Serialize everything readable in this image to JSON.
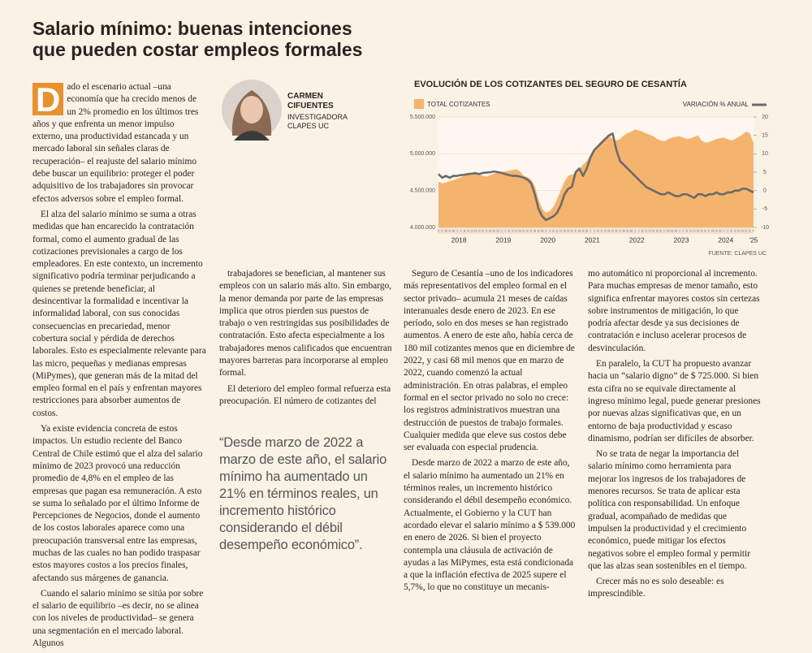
{
  "header": {
    "title": "Salario mínimo: buenas intenciones que pueden costar empleos formales"
  },
  "author": {
    "name": "CARMEN CIFUENTES",
    "role": "INVESTIGADORA CLAPES UC"
  },
  "columns": [
    [
      "Dado el escenario actual –una economía que ha crecido menos de un 2% promedio en los últimos tres años y que enfrenta un menor impulso externo, una productividad estancada y un mercado laboral sin señales claras de recuperación– el reajuste del salario mínimo debe buscar un equilibrio: proteger el poder adquisitivo de los trabajadores sin provocar efectos adversos sobre el empleo formal.",
      "El alza del salario mínimo se suma a otras medidas que han encarecido la contratación formal, como el aumento gradual de las cotizaciones previsionales a cargo de los empleadores. En este contexto, un incremento significativo podría terminar perjudicando a quienes se pretende beneficiar, al desincentivar la formalidad e incentivar la informalidad laboral, con sus conocidas consecuencias en precariedad, menor cobertura social y pérdida de derechos laborales. Esto es especialmente relevante para las micro, pequeñas y medianas empresas (MiPymes), que generan más de la mitad del empleo formal en el país y enfrentan mayores restricciones para absorber aumentos de costos.",
      "Ya existe evidencia concreta de estos impactos. Un estudio reciente del Banco Central de Chile estimó que el alza del salario mínimo de 2023 provocó una reducción promedio de 4,8% en el empleo de las empresas que pagan esa remuneración. A esto se suma lo señalado por el último Informe de Percepciones de Negocios, donde el aumento de los costos laborales aparece como una preocupación transversal entre las empresas, muchas de las cuales no han podido traspasar estos mayores costos a los precios finales, afectando sus márgenes de ganancia.",
      "Cuando el salario mínimo se sitúa por sobre el salario de equilibrio –es decir, no se alinea con los niveles de productividad– se genera una segmentación en el mercado laboral. Algunos"
    ],
    [
      "trabajadores se benefician, al mantener sus empleos con un salario más alto. Sin embargo, la menor demanda por parte de las empresas implica que otros pierden sus puestos de trabajo o ven restringidas sus posibilidades de contratación. Esto afecta especialmente a los trabajadores menos calificados que encuentran mayores barreras para incorporarse al empleo formal.",
      "El deterioro del empleo formal refuerza esta preocupación. El número de cotizantes del"
    ],
    [
      "Seguro de Cesantía –uno de los indicadores más representativos del empleo formal en el sector privado– acumula 21 meses de caídas interanuales desde enero de 2023. En ese período, solo en dos meses se han registrado aumentos. A enero de este año, había cerca de 180 mil cotizantes menos que en diciembre de 2022, y casi 68 mil menos que en marzo de 2022, cuando comenzó la actual administración. En otras palabras, el empleo formal en el sector privado no solo no crece: los registros administrativos muestran una destrucción de puestos de trabajo formales. Cualquier medida que eleve sus costos debe ser evaluada con especial prudencia.",
      "Desde marzo de 2022 a marzo de este año, el salario mínimo ha aumentado un 21% en términos reales, un incremento histórico considerando el débil desempeño económico. Actualmente, el Gobierno y la CUT han acordado elevar el salario mínimo a $ 539.000 en enero de 2026. Si bien el proyecto contempla una cláusula de activación de ayudas a las MiPymes, esta está condicionada a que la inflación efectiva de 2025 supere el 5,7%, lo que no constituye un mecanis-"
    ],
    [
      "mo automático ni proporcional al incremento. Para muchas empresas de menor tamaño, esto significa enfrentar mayores costos sin certezas sobre instrumentos de mitigación, lo que podría afectar desde ya sus decisiones de contratación e incluso acelerar procesos de desvinculación.",
      "En paralelo, la CUT ha propuesto avanzar hacia un “salario digno” de $ 725.000. Si bien esta cifra no se equivale directamente al ingreso mínimo legal, puede generar presiones por nuevas alzas significativas que, en un entorno de baja productividad y escaso dinamismo, podrían ser difíciles de absorber.",
      "No se trata de negar la importancia del salario mínimo como herramienta para mejorar los ingresos de los trabajadores de menores recursos. Se trata de aplicar esta política con responsabilidad. Un enfoque gradual, acompañado de medidas que impulsen la productividad y el crecimiento económico, puede mitigar los efectos negativos sobre el empleo formal y permitir que las alzas sean sostenibles en el tiempo.",
      "Crecer más no es solo deseable: es imprescindible."
    ]
  ],
  "quote": "“Desde marzo de 2022 a marzo de este año, el salario mínimo ha aumentado un 21% en términos reales, un incremento histórico considerando el débil desempeño económico”.",
  "chart_data": {
    "type": "area-line",
    "title": "EVOLUCIÓN DE LOS COTIZANTES DEL SEGURO DE CESANTÍA",
    "source": "FUENTE: CLAPES UC",
    "categories": [
      "E",
      "F",
      "M",
      "A",
      "M",
      "J",
      "J",
      "A",
      "S",
      "O",
      "N",
      "D",
      "E",
      "F",
      "M",
      "A",
      "M",
      "J",
      "J",
      "A",
      "S",
      "O",
      "N",
      "D",
      "E",
      "F",
      "M",
      "A",
      "M",
      "J",
      "J",
      "A",
      "S",
      "O",
      "N",
      "D",
      "E",
      "F",
      "M",
      "A",
      "M",
      "J",
      "J",
      "A",
      "S",
      "O",
      "N",
      "D",
      "E",
      "F",
      "M",
      "A",
      "M",
      "J",
      "J",
      "A",
      "S",
      "O",
      "N",
      "D",
      "E",
      "F",
      "M",
      "A",
      "M",
      "J",
      "J",
      "A",
      "S",
      "O",
      "N",
      "D",
      "E",
      "F",
      "M",
      "A",
      "M",
      "J",
      "J",
      "A",
      "S",
      "O",
      "N",
      "D",
      "E",
      "F"
    ],
    "year_labels": [
      "2018",
      "2019",
      "2020",
      "2021",
      "2022",
      "2023",
      "2024",
      "'25"
    ],
    "series": [
      {
        "name": "TOTAL COTIZANTES",
        "color": "#f5b46e",
        "values": [
          4620000,
          4600000,
          4610000,
          4630000,
          4640000,
          4660000,
          4680000,
          4700000,
          4720000,
          4740000,
          4760000,
          4720000,
          4700000,
          4690000,
          4710000,
          4730000,
          4740000,
          4750000,
          4760000,
          4770000,
          4780000,
          4790000,
          4760000,
          4700000,
          4680000,
          4650000,
          4560000,
          4380000,
          4250000,
          4200000,
          4220000,
          4280000,
          4380000,
          4500000,
          4620000,
          4700000,
          4720000,
          4730000,
          4800000,
          4850000,
          4900000,
          4980000,
          5050000,
          5120000,
          5180000,
          5220000,
          5250000,
          5200000,
          5180000,
          5200000,
          5250000,
          5280000,
          5300000,
          5330000,
          5320000,
          5300000,
          5280000,
          5260000,
          5240000,
          5200000,
          5180000,
          5170000,
          5200000,
          5220000,
          5230000,
          5240000,
          5220000,
          5200000,
          5210000,
          5230000,
          5250000,
          5180000,
          5150000,
          5160000,
          5180000,
          5200000,
          5210000,
          5220000,
          5200000,
          5180000,
          5200000,
          5230000,
          5260000,
          5300000,
          5280000,
          5150000
        ]
      },
      {
        "name": "VARIACIÓN % ANUAL",
        "color": "#6b6b6b",
        "axis": "y2",
        "values": [
          4.5,
          3.5,
          4,
          3.5,
          4,
          4,
          4.2,
          4.3,
          4.5,
          4.6,
          4.7,
          4.5,
          4.8,
          4.9,
          5,
          5.2,
          5,
          4.8,
          4.5,
          4.2,
          4,
          4,
          3.8,
          3.5,
          3,
          2,
          -1,
          -5,
          -7,
          -8,
          -7.5,
          -7,
          -6,
          -4,
          -1,
          0.5,
          1,
          5,
          6,
          4,
          6,
          9,
          11,
          12,
          13,
          14,
          15,
          15.5,
          11,
          8,
          7,
          6,
          5,
          4,
          3,
          2,
          1,
          0.5,
          0,
          -0.5,
          -1,
          -1,
          -0.5,
          -1,
          -1.5,
          -1.5,
          -1,
          -1,
          -1.5,
          -2,
          -1,
          -1,
          -1.5,
          -1,
          -1,
          -0.5,
          -1,
          -1,
          -0.5,
          -0.5,
          0,
          0,
          0.5,
          0.5,
          0,
          -0.5
        ]
      }
    ],
    "ylim": [
      4000000,
      5500000
    ],
    "yticks": [
      {
        "value": 4000000,
        "label": "4.000.000"
      },
      {
        "value": 4500000,
        "label": "4.500.000"
      },
      {
        "value": 5000000,
        "label": "5.000.000"
      },
      {
        "value": 5500000,
        "label": "5.500.000"
      }
    ],
    "y2lim": [
      -10,
      20
    ],
    "y2ticks": [
      -10,
      -5,
      0,
      5,
      10,
      15,
      20
    ],
    "grid": true
  }
}
